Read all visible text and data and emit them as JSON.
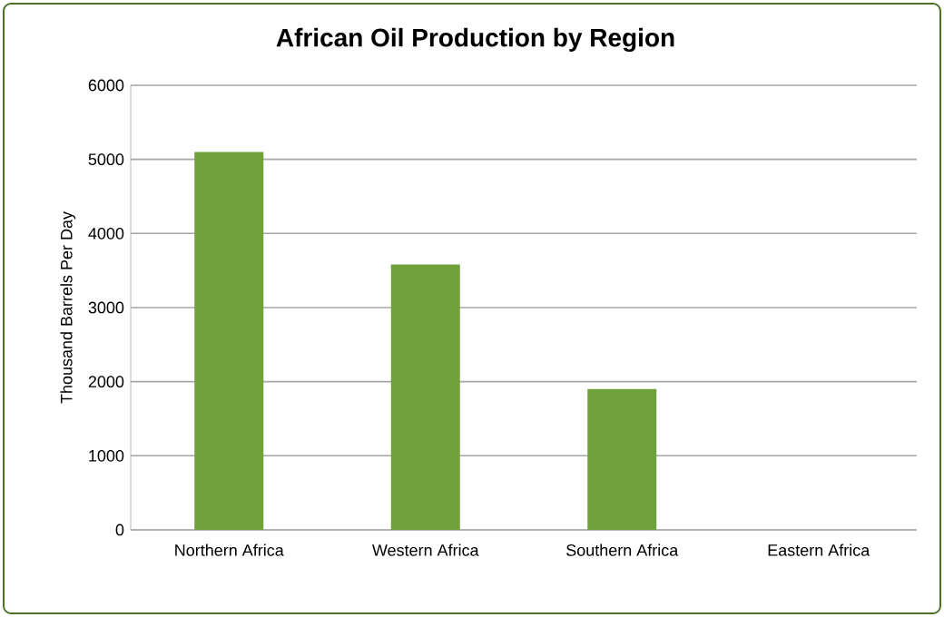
{
  "chart_data": {
    "type": "bar",
    "title": "African Oil Production by Region",
    "ylabel": "Thousand Barrels Per Day",
    "categories": [
      "Northern Africa",
      "Western Africa",
      "Southern Africa",
      "Eastern Africa"
    ],
    "values": [
      5100,
      3580,
      1900,
      0
    ],
    "color": "#70a03c",
    "ylim": [
      0,
      6000
    ],
    "yticks": [
      0,
      1000,
      2000,
      3000,
      4000,
      5000,
      6000
    ],
    "grid": "y"
  }
}
